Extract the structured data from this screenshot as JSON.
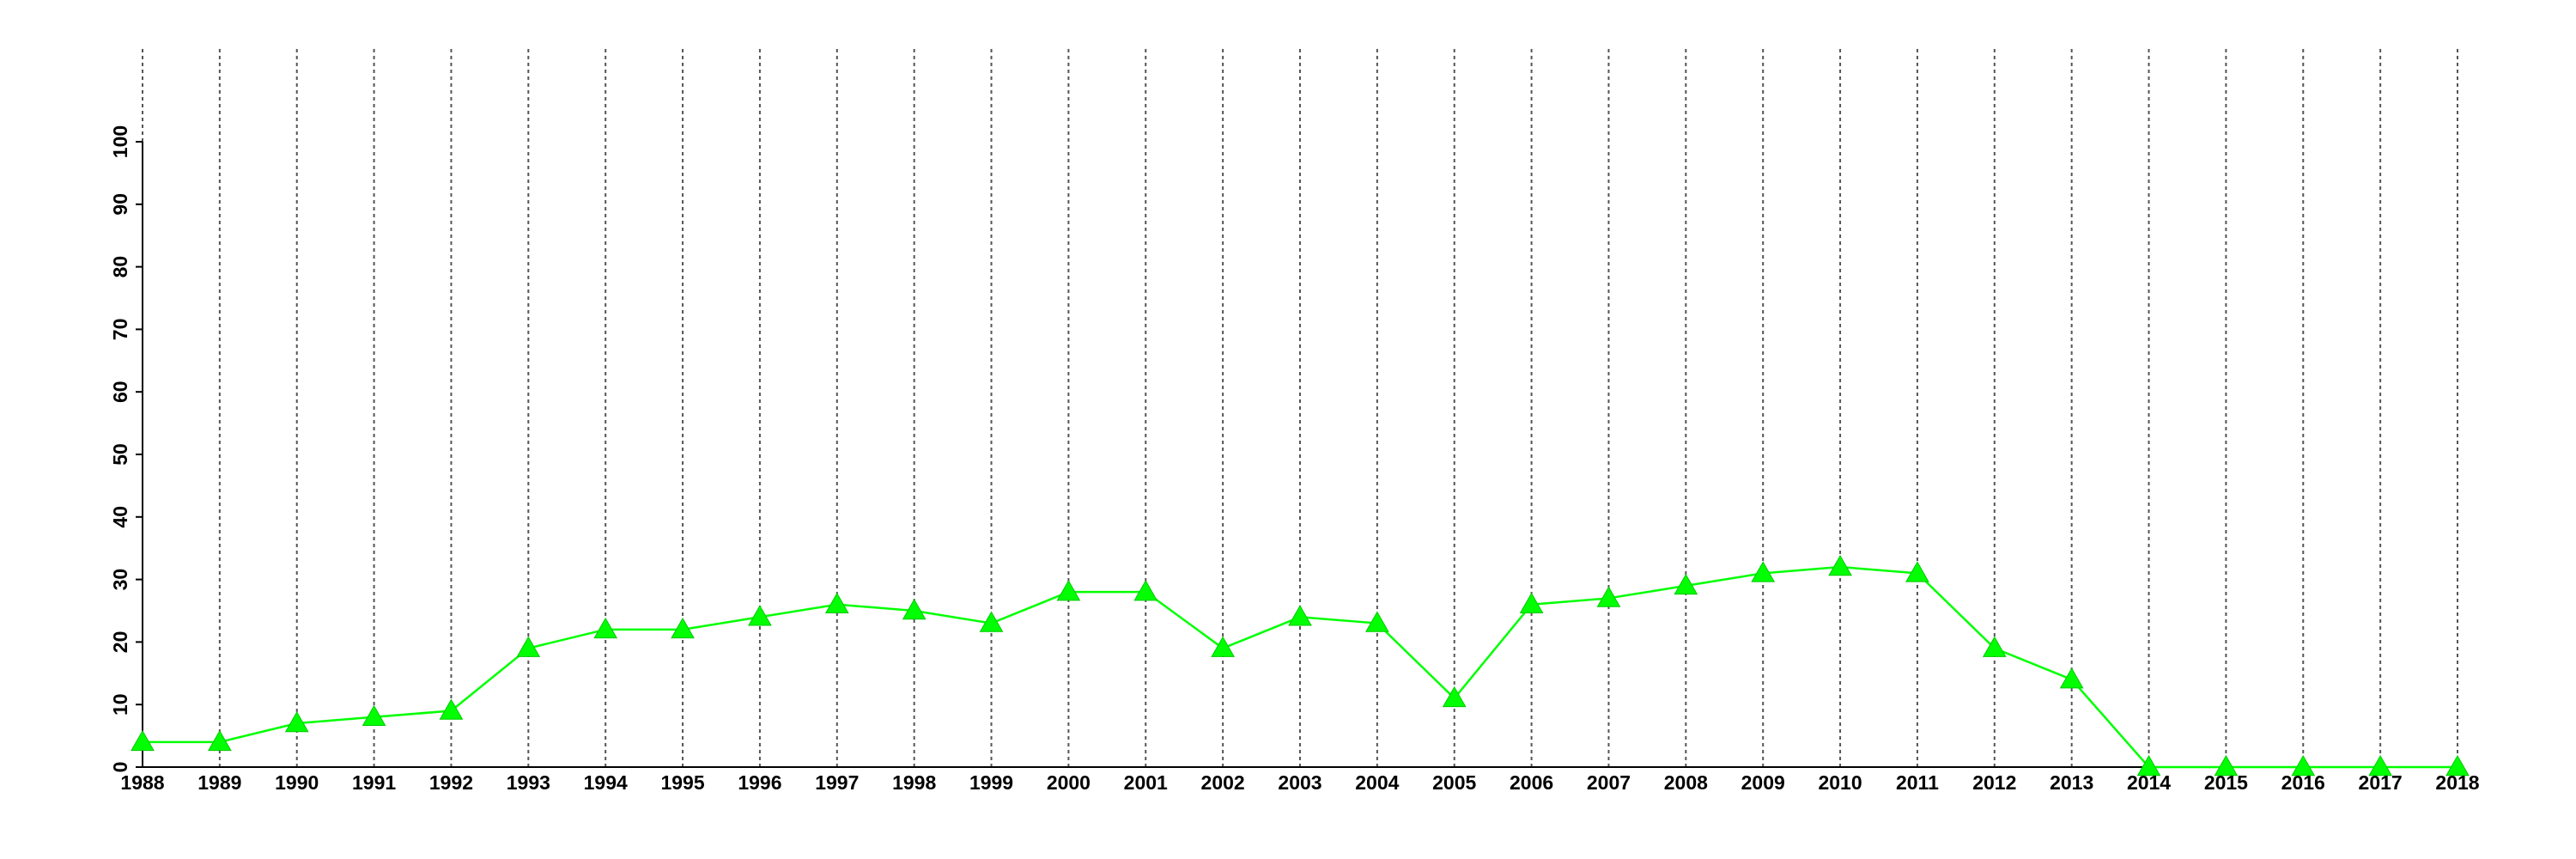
{
  "chart_data": {
    "type": "line",
    "x": [
      1988,
      1989,
      1990,
      1991,
      1992,
      1993,
      1994,
      1995,
      1996,
      1997,
      1998,
      1999,
      2000,
      2001,
      2002,
      2003,
      2004,
      2005,
      2006,
      2007,
      2008,
      2009,
      2010,
      2011,
      2012,
      2013,
      2014,
      2015,
      2016,
      2017,
      2018
    ],
    "series": [
      {
        "color": "#00ff00",
        "values": [
          4,
          4,
          7,
          8,
          9,
          19,
          22,
          22,
          24,
          26,
          25,
          23,
          28,
          28,
          19,
          24,
          23,
          11,
          26,
          27,
          29,
          31,
          32,
          31,
          19,
          14,
          0,
          0,
          0,
          0,
          0
        ]
      }
    ],
    "xlim": [
      1988,
      2018
    ],
    "ylim": [
      0,
      100
    ],
    "yticks": [
      0,
      10,
      20,
      30,
      40,
      50,
      60,
      70,
      80,
      90,
      100
    ],
    "grid": true,
    "marker": "triangle"
  }
}
